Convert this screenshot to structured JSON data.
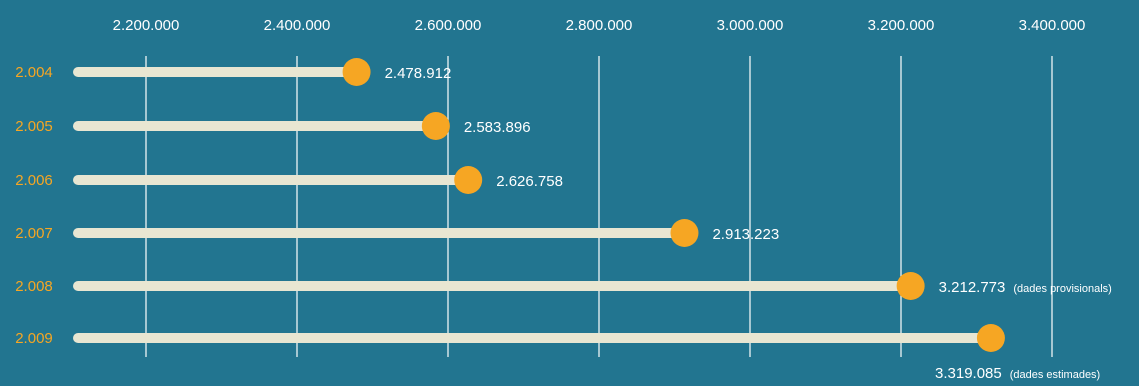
{
  "chart_data": {
    "type": "lollipop",
    "title": "",
    "xlabel": "",
    "ylabel": "",
    "xlim": [
      2150000,
      3410000
    ],
    "xticks": [
      2200000,
      2400000,
      2600000,
      2800000,
      3000000,
      3200000,
      3400000
    ],
    "xtick_labels": [
      "2.200.000",
      "2.400.000",
      "2.600.000",
      "2.800.000",
      "3.000.000",
      "3.200.000",
      "3.400.000"
    ],
    "grid": true,
    "categories": [
      "2.004",
      "2.005",
      "2.006",
      "2.007",
      "2.008",
      "2.009"
    ],
    "values": [
      2478912,
      2583896,
      2626758,
      2913223,
      3212773,
      3319085
    ],
    "value_labels": [
      "2.478.912",
      "2.583.896",
      "2.626.758",
      "2.913.223",
      "3.212.773",
      "3.319.085"
    ],
    "annotations": [
      "",
      "",
      "",
      "",
      "(dades provisionals)",
      "(dades estimades)"
    ],
    "colors": {
      "background": "#227590",
      "bar": "#e8e6d2",
      "dot": "#f6a623",
      "category_text": "#f6a623",
      "grid": "#ffffff",
      "text": "#ffffff"
    }
  }
}
